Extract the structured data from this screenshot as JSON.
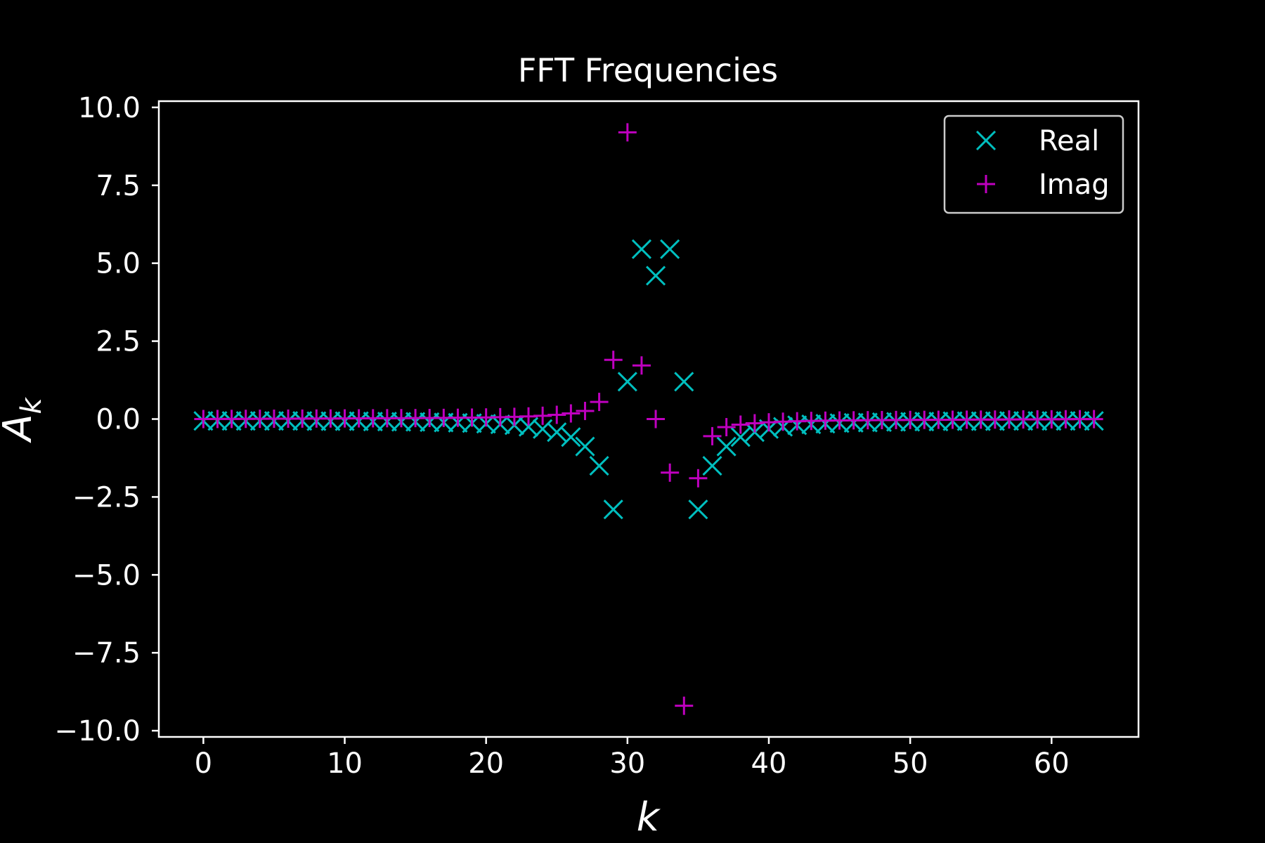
{
  "chart_data": {
    "type": "scatter",
    "title": "FFT Frequencies",
    "xlabel": "k",
    "ylabel": "A",
    "ylabel_subscript": "k",
    "xlim": [
      -3.15,
      66.15
    ],
    "ylim": [
      -10.2,
      10.2
    ],
    "xticks": [
      0,
      10,
      20,
      30,
      40,
      50,
      60
    ],
    "xtick_labels": [
      "0",
      "10",
      "20",
      "30",
      "40",
      "50",
      "60"
    ],
    "yticks": [
      10,
      7.5,
      5,
      2.5,
      0,
      -2.5,
      -5,
      -7.5,
      -10
    ],
    "ytick_labels": [
      "10.0",
      "7.5",
      "5.0",
      "2.5",
      "0.0",
      "−2.5",
      "−5.0",
      "−7.5",
      "−10.0"
    ],
    "grid": false,
    "legend_position": "top-right",
    "x": [
      0,
      1,
      2,
      3,
      4,
      5,
      6,
      7,
      8,
      9,
      10,
      11,
      12,
      13,
      14,
      15,
      16,
      17,
      18,
      19,
      20,
      21,
      22,
      23,
      24,
      25,
      26,
      27,
      28,
      29,
      30,
      31,
      32,
      33,
      34,
      35,
      36,
      37,
      38,
      39,
      40,
      41,
      42,
      43,
      44,
      45,
      46,
      47,
      48,
      49,
      50,
      51,
      52,
      53,
      54,
      55,
      56,
      57,
      58,
      59,
      60,
      61,
      62,
      63
    ],
    "series": [
      {
        "name": "Real",
        "marker": "x",
        "color": "#00bfbf",
        "values": [
          -0.06,
          -0.06,
          -0.06,
          -0.06,
          -0.06,
          -0.06,
          -0.06,
          -0.06,
          -0.07,
          -0.07,
          -0.07,
          -0.07,
          -0.08,
          -0.08,
          -0.09,
          -0.09,
          -0.1,
          -0.11,
          -0.12,
          -0.13,
          -0.15,
          -0.17,
          -0.2,
          -0.25,
          -0.32,
          -0.42,
          -0.58,
          -0.88,
          -1.5,
          -2.9,
          1.2,
          5.45,
          4.6,
          5.45,
          1.2,
          -2.9,
          -1.5,
          -0.88,
          -0.58,
          -0.42,
          -0.32,
          -0.25,
          -0.2,
          -0.17,
          -0.15,
          -0.13,
          -0.12,
          -0.11,
          -0.1,
          -0.09,
          -0.09,
          -0.08,
          -0.08,
          -0.07,
          -0.07,
          -0.07,
          -0.07,
          -0.06,
          -0.06,
          -0.06,
          -0.06,
          -0.06,
          -0.06,
          -0.06
        ]
      },
      {
        "name": "Imag",
        "marker": "+",
        "color": "#bf00bf",
        "values": [
          0,
          0.002,
          0.004,
          0.006,
          0.008,
          0.01,
          0.012,
          0.014,
          0.016,
          0.018,
          0.02,
          0.022,
          0.024,
          0.026,
          0.028,
          0.03,
          0.033,
          0.037,
          0.041,
          0.046,
          0.052,
          0.06,
          0.07,
          0.085,
          0.105,
          0.135,
          0.18,
          0.26,
          0.55,
          1.9,
          9.2,
          1.72,
          0,
          -1.72,
          -9.2,
          -1.9,
          -0.55,
          -0.26,
          -0.18,
          -0.135,
          -0.105,
          -0.085,
          -0.07,
          -0.06,
          -0.052,
          -0.046,
          -0.041,
          -0.037,
          -0.033,
          -0.03,
          -0.028,
          -0.026,
          -0.024,
          -0.022,
          -0.02,
          -0.018,
          -0.016,
          -0.014,
          -0.012,
          -0.01,
          -0.008,
          -0.006,
          -0.004,
          -0.002
        ]
      }
    ]
  }
}
